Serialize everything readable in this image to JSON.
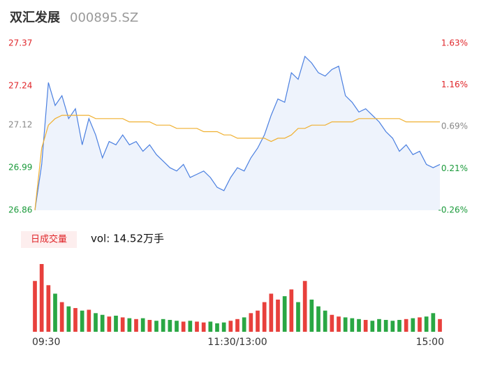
{
  "chart_data": [
    {
      "type": "line",
      "title": "双汇发展",
      "subtitle": "000895.SZ",
      "x": [
        0,
        4,
        8,
        12,
        16,
        20,
        24,
        28,
        32,
        36,
        40,
        44,
        48,
        52,
        56,
        60,
        64,
        68,
        72,
        76,
        80,
        84,
        88,
        92,
        96,
        100,
        104,
        108,
        112,
        116,
        120,
        124,
        128,
        132,
        136,
        140,
        144,
        148,
        152,
        156,
        160,
        164,
        168,
        172,
        176,
        180,
        184,
        188,
        192,
        196,
        200,
        204,
        208,
        212,
        216,
        220,
        224,
        228,
        232,
        236,
        240
      ],
      "series": [
        {
          "color": "#4a7fe0",
          "fill": "#eef3fc",
          "values": [
            26.86,
            27.0,
            27.25,
            27.18,
            27.21,
            27.14,
            27.17,
            27.06,
            27.14,
            27.09,
            27.02,
            27.07,
            27.06,
            27.09,
            27.06,
            27.07,
            27.04,
            27.06,
            27.03,
            27.01,
            26.99,
            26.98,
            27.0,
            26.96,
            26.97,
            26.98,
            26.96,
            26.93,
            26.92,
            26.96,
            26.99,
            26.98,
            27.02,
            27.05,
            27.09,
            27.15,
            27.2,
            27.19,
            27.28,
            27.26,
            27.33,
            27.31,
            27.28,
            27.27,
            27.29,
            27.3,
            27.21,
            27.19,
            27.16,
            27.17,
            27.15,
            27.13,
            27.1,
            27.08,
            27.04,
            27.06,
            27.03,
            27.04,
            27.0,
            26.99,
            27.0
          ]
        },
        {
          "color": "#f0b030",
          "values": [
            26.86,
            27.05,
            27.12,
            27.14,
            27.15,
            27.15,
            27.15,
            27.15,
            27.15,
            27.14,
            27.14,
            27.14,
            27.14,
            27.14,
            27.13,
            27.13,
            27.13,
            27.13,
            27.12,
            27.12,
            27.12,
            27.11,
            27.11,
            27.11,
            27.11,
            27.1,
            27.1,
            27.1,
            27.09,
            27.09,
            27.08,
            27.08,
            27.08,
            27.08,
            27.08,
            27.07,
            27.08,
            27.08,
            27.09,
            27.11,
            27.11,
            27.12,
            27.12,
            27.12,
            27.13,
            27.13,
            27.13,
            27.13,
            27.14,
            27.14,
            27.14,
            27.14,
            27.14,
            27.14,
            27.14,
            27.13,
            27.13,
            27.13,
            27.13,
            27.13,
            27.13
          ]
        }
      ],
      "xlim": [
        0,
        240
      ],
      "xticks": [
        {
          "value": 0,
          "label": "09:30"
        },
        {
          "value": 120,
          "label": "11:30/13:00"
        },
        {
          "value": 240,
          "label": "15:00"
        }
      ],
      "ylim": [
        26.86,
        27.37
      ],
      "yticks": [
        26.86,
        26.99,
        27.12,
        27.24,
        27.37
      ],
      "ytick_colors": [
        "#1a9a3a",
        "#1a9a3a",
        "#888888",
        "#e0262a",
        "#e0262a"
      ],
      "y2lim": [
        -0.26,
        1.63
      ],
      "y2ticks": [
        {
          "value": -0.26,
          "label": "-0.26%"
        },
        {
          "value": 0.21,
          "label": "0.21%"
        },
        {
          "value": 0.69,
          "label": "0.69%"
        },
        {
          "value": 1.16,
          "label": "1.16%"
        },
        {
          "value": 1.63,
          "label": "1.63%"
        }
      ],
      "y2tick_colors": [
        "#1a9a3a",
        "#1a9a3a",
        "#888888",
        "#e0262a",
        "#e0262a"
      ]
    },
    {
      "type": "bar",
      "button": "日成交量",
      "label": "vol: 14.52万手",
      "up_color": "#e8403c",
      "down_color": "#2aa744",
      "values": [
        6000,
        8000,
        5500,
        4500,
        3500,
        3000,
        2800,
        2500,
        2600,
        2200,
        2000,
        1800,
        1900,
        1700,
        1600,
        1500,
        1600,
        1400,
        1300,
        1500,
        1400,
        1300,
        1200,
        1300,
        1200,
        1100,
        1200,
        1000,
        1100,
        1300,
        1500,
        1700,
        2200,
        2500,
        3500,
        4500,
        3800,
        4200,
        5000,
        3500,
        6000,
        3800,
        3000,
        2500,
        2000,
        1800,
        1700,
        1600,
        1500,
        1400,
        1300,
        1500,
        1400,
        1300,
        1400,
        1500,
        1600,
        1700,
        1800,
        2200,
        1500
      ]
    }
  ]
}
